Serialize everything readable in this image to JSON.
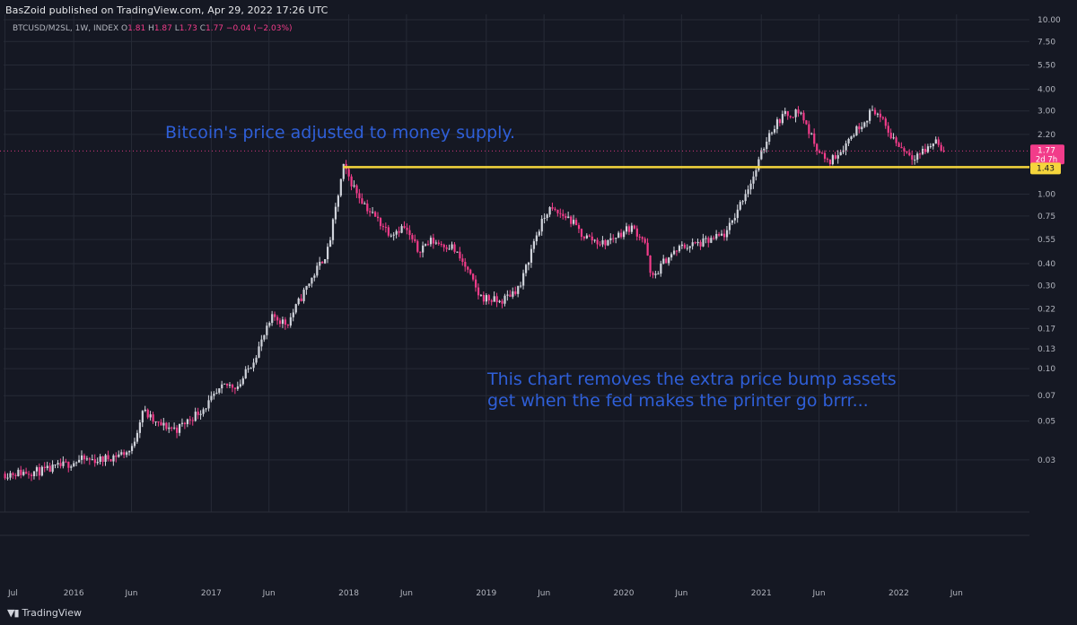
{
  "header": {
    "published": "BasZoid published on TradingView.com, Apr 29, 2022 17:26 UTC"
  },
  "legend": {
    "symbol": "BTCUSD/M2SL, 1W, INDEX",
    "o_label": "O",
    "o_value": "1.81",
    "h_label": "H",
    "h_value": "1.87",
    "l_label": "L",
    "l_value": "1.73",
    "c_label": "C",
    "c_value": "1.77",
    "change": "−0.04 (−2.03%)"
  },
  "footer": {
    "brand": "TradingView",
    "logo_icon": "tradingview-logo-icon"
  },
  "colors": {
    "background": "#151823",
    "grid": "#262a36",
    "up": "#d1d4dc",
    "down": "#f23c8a",
    "resistance": "#f5d53c",
    "annotation": "#2f5fd8"
  },
  "chart_data": {
    "type": "candlestick",
    "scale": "log",
    "ylim": [
      0.018,
      10
    ],
    "y_ticks": [
      "10.00",
      "7.50",
      "5.50",
      "4.00",
      "3.00",
      "2.20",
      "1.00",
      "0.75",
      "0.55",
      "0.40",
      "0.30",
      "0.22",
      "0.17",
      "0.13",
      "0.10",
      "0.07",
      "0.05",
      "0.03"
    ],
    "y_tick_values": [
      10,
      7.5,
      5.5,
      4,
      3,
      2.2,
      1,
      0.75,
      0.55,
      0.4,
      0.3,
      0.22,
      0.17,
      0.13,
      0.1,
      0.07,
      0.05,
      0.03
    ],
    "x_ticks": [
      "Jul",
      "2016",
      "Jun",
      "2017",
      "Jun",
      "2018",
      "Jun",
      "2019",
      "Jun",
      "2020",
      "Jun",
      "2021",
      "Jun",
      "2022",
      "Jun"
    ],
    "x_tick_times": [
      2015.5,
      2016.0,
      2016.42,
      2017.0,
      2017.42,
      2018.0,
      2018.42,
      2019.0,
      2019.42,
      2020.0,
      2020.42,
      2021.0,
      2021.42,
      2022.0,
      2022.42
    ],
    "x_range": [
      2015.49,
      2022.95
    ],
    "anchors": [
      [
        2015.5,
        0.025
      ],
      [
        2015.8,
        0.026
      ],
      [
        2016.05,
        0.03
      ],
      [
        2016.2,
        0.03
      ],
      [
        2016.42,
        0.034
      ],
      [
        2016.5,
        0.058
      ],
      [
        2016.6,
        0.048
      ],
      [
        2016.75,
        0.045
      ],
      [
        2016.95,
        0.06
      ],
      [
        2017.1,
        0.08
      ],
      [
        2017.2,
        0.08
      ],
      [
        2017.3,
        0.11
      ],
      [
        2017.45,
        0.2
      ],
      [
        2017.55,
        0.18
      ],
      [
        2017.7,
        0.3
      ],
      [
        2017.85,
        0.48
      ],
      [
        2017.96,
        1.43
      ],
      [
        2018.05,
        1.05
      ],
      [
        2018.15,
        0.8
      ],
      [
        2018.3,
        0.6
      ],
      [
        2018.4,
        0.65
      ],
      [
        2018.5,
        0.48
      ],
      [
        2018.6,
        0.54
      ],
      [
        2018.75,
        0.5
      ],
      [
        2018.85,
        0.38
      ],
      [
        2018.95,
        0.26
      ],
      [
        2019.1,
        0.24
      ],
      [
        2019.25,
        0.3
      ],
      [
        2019.35,
        0.55
      ],
      [
        2019.45,
        0.82
      ],
      [
        2019.6,
        0.73
      ],
      [
        2019.7,
        0.58
      ],
      [
        2019.85,
        0.52
      ],
      [
        2019.95,
        0.58
      ],
      [
        2020.05,
        0.65
      ],
      [
        2020.15,
        0.55
      ],
      [
        2020.2,
        0.32
      ],
      [
        2020.3,
        0.42
      ],
      [
        2020.42,
        0.5
      ],
      [
        2020.55,
        0.52
      ],
      [
        2020.65,
        0.55
      ],
      [
        2020.75,
        0.6
      ],
      [
        2020.85,
        0.9
      ],
      [
        2020.95,
        1.3
      ],
      [
        2021.05,
        2.2
      ],
      [
        2021.15,
        2.8
      ],
      [
        2021.28,
        3.0
      ],
      [
        2021.38,
        2.0
      ],
      [
        2021.48,
        1.5
      ],
      [
        2021.58,
        1.8
      ],
      [
        2021.68,
        2.3
      ],
      [
        2021.82,
        3.1
      ],
      [
        2021.92,
        2.3
      ],
      [
        2022.0,
        1.9
      ],
      [
        2022.1,
        1.65
      ],
      [
        2022.2,
        1.8
      ],
      [
        2022.27,
        2.05
      ],
      [
        2022.33,
        1.77
      ]
    ],
    "last_price": "1.77",
    "last_price_label": "1.77",
    "countdown": "2d 7h",
    "resistance": {
      "value": 1.43,
      "label": "1.43",
      "from": 2017.96,
      "to": 2022.95
    },
    "annotations": [
      {
        "text": "Bitcoin's price adjusted to money supply."
      },
      {
        "text": "This chart removes the extra price bump assets"
      },
      {
        "text": "get when the fed makes the printer go brrr..."
      }
    ]
  }
}
